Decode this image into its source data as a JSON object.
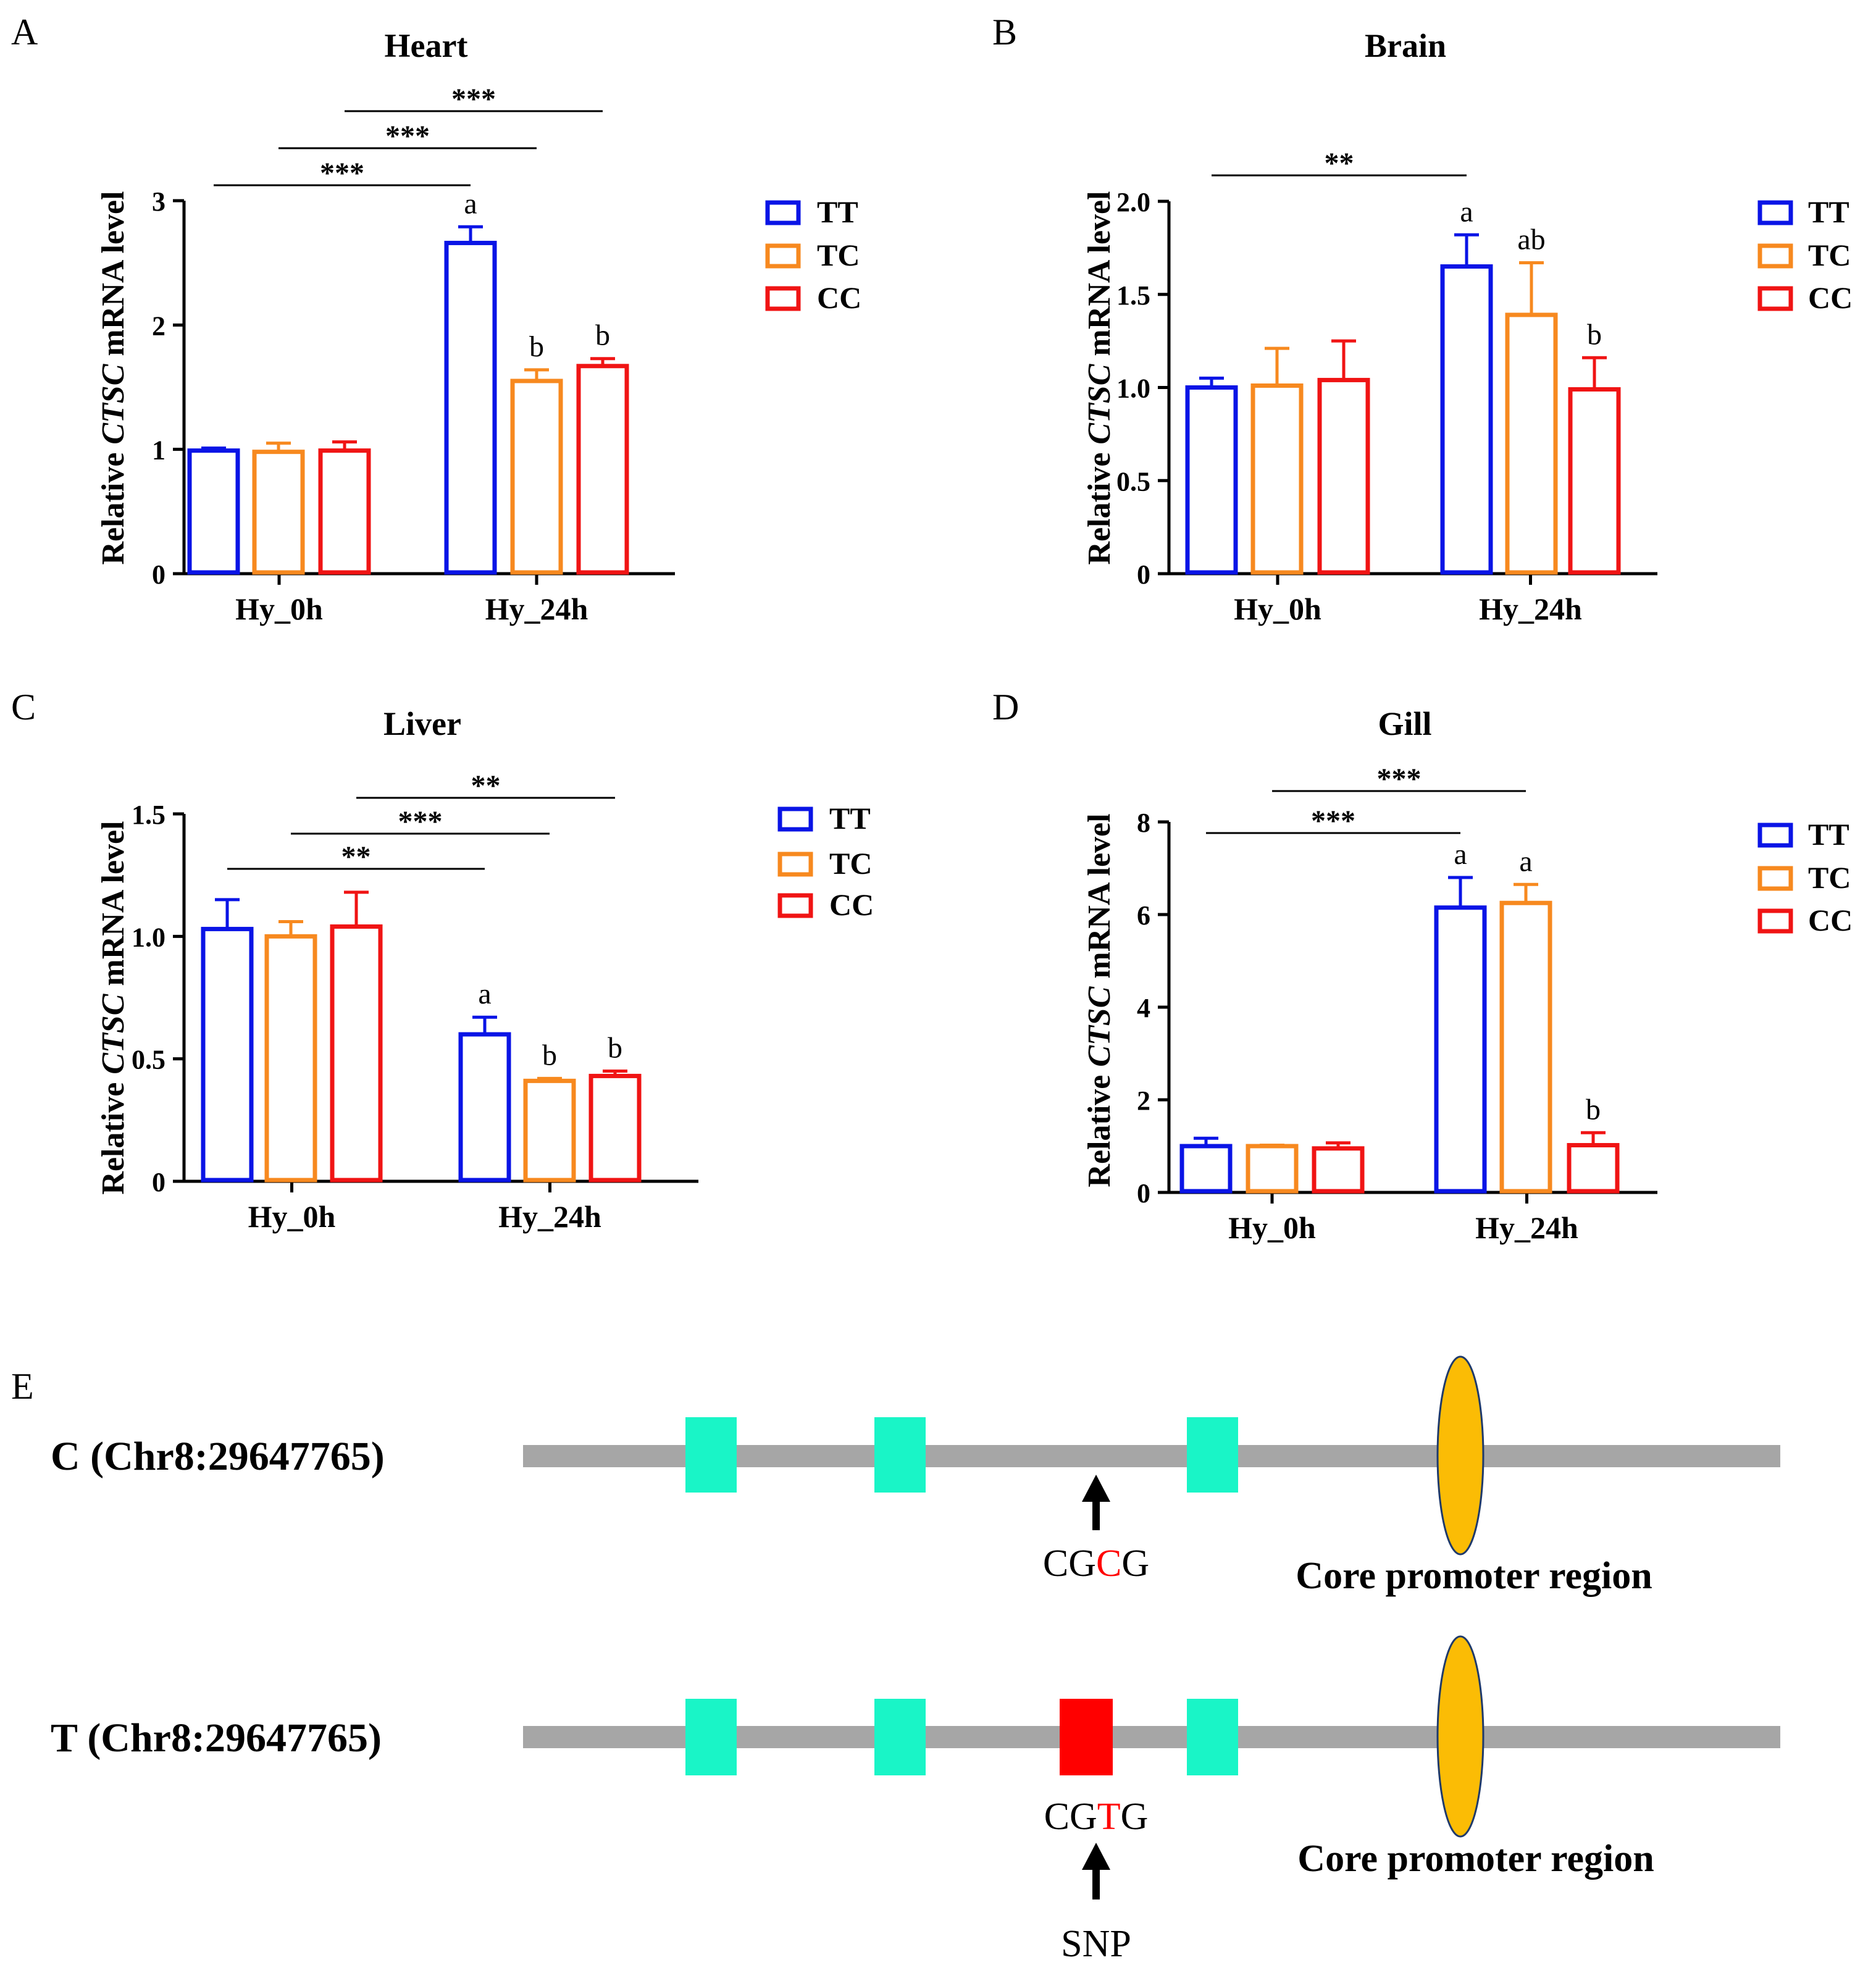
{
  "colors": {
    "TT": "#0a14e6",
    "TC": "#f7891f",
    "CC": "#f01414",
    "axis": "#000000",
    "track": "#a6a6a6",
    "exon": "#19f5c7",
    "snp_box": "#ff0000",
    "promoter": "#fbbc05",
    "promoter_edge": "#1f3a6b"
  },
  "y_axis_label": {
    "prefix": "Relative ",
    "gene": "CTSC",
    "suffix": " mRNA  level"
  },
  "chart_data": [
    {
      "panel": "A",
      "type": "bar",
      "title": "Heart",
      "categories": [
        "Hy_0h",
        "Hy_24h"
      ],
      "ylim": [
        0,
        3
      ],
      "ticks": [
        0,
        1,
        2,
        3
      ],
      "tick_labels": [
        "0",
        "1",
        "2",
        "3"
      ],
      "series": [
        {
          "name": "TT",
          "values": [
            0.99,
            2.66
          ],
          "errors": [
            0.02,
            0.13
          ],
          "letters": [
            "",
            "a"
          ]
        },
        {
          "name": "TC",
          "values": [
            0.98,
            1.55
          ],
          "errors": [
            0.07,
            0.09
          ],
          "letters": [
            "",
            "b"
          ]
        },
        {
          "name": "CC",
          "values": [
            0.99,
            1.67
          ],
          "errors": [
            0.07,
            0.06
          ],
          "letters": [
            "",
            "b"
          ]
        }
      ],
      "comparisons": [
        {
          "from": [
            "Hy_0h",
            "TT"
          ],
          "to": [
            "Hy_24h",
            "TT"
          ],
          "label": "***"
        },
        {
          "from": [
            "Hy_0h",
            "TC"
          ],
          "to": [
            "Hy_24h",
            "TC"
          ],
          "label": "***"
        },
        {
          "from": [
            "Hy_0h",
            "CC"
          ],
          "to": [
            "Hy_24h",
            "CC"
          ],
          "label": "***"
        }
      ],
      "legend": [
        "TT",
        "TC",
        "CC"
      ]
    },
    {
      "panel": "B",
      "type": "bar",
      "title": "Brain",
      "categories": [
        "Hy_0h",
        "Hy_24h"
      ],
      "ylim": [
        0,
        2
      ],
      "ticks": [
        0,
        0.5,
        1,
        1.5,
        2
      ],
      "tick_labels": [
        "0",
        "0.5",
        "1.0",
        "1.5",
        "2.0"
      ],
      "series": [
        {
          "name": "TT",
          "values": [
            1.0,
            1.65
          ],
          "errors": [
            0.05,
            0.17
          ],
          "letters": [
            "",
            "a"
          ]
        },
        {
          "name": "TC",
          "values": [
            1.01,
            1.39
          ],
          "errors": [
            0.2,
            0.28
          ],
          "letters": [
            "",
            "ab"
          ]
        },
        {
          "name": "CC",
          "values": [
            1.04,
            0.99
          ],
          "errors": [
            0.21,
            0.17
          ],
          "letters": [
            "",
            "b"
          ]
        }
      ],
      "comparisons": [
        {
          "from": [
            "Hy_0h",
            "TT"
          ],
          "to": [
            "Hy_24h",
            "TT"
          ],
          "label": "**"
        }
      ],
      "legend": [
        "TT",
        "TC",
        "CC"
      ]
    },
    {
      "panel": "C",
      "type": "bar",
      "title": "Liver",
      "categories": [
        "Hy_0h",
        "Hy_24h"
      ],
      "ylim": [
        0,
        1.5
      ],
      "ticks": [
        0,
        0.5,
        1,
        1.5
      ],
      "tick_labels": [
        "0",
        "0.5",
        "1.0",
        "1.5"
      ],
      "series": [
        {
          "name": "TT",
          "values": [
            1.03,
            0.6
          ],
          "errors": [
            0.12,
            0.07
          ],
          "letters": [
            "",
            "a"
          ]
        },
        {
          "name": "TC",
          "values": [
            1.0,
            0.41
          ],
          "errors": [
            0.06,
            0.01
          ],
          "letters": [
            "",
            "b"
          ]
        },
        {
          "name": "CC",
          "values": [
            1.04,
            0.43
          ],
          "errors": [
            0.14,
            0.02
          ],
          "letters": [
            "",
            "b"
          ]
        }
      ],
      "comparisons": [
        {
          "from": [
            "Hy_0h",
            "TT"
          ],
          "to": [
            "Hy_24h",
            "TT"
          ],
          "label": "**"
        },
        {
          "from": [
            "Hy_0h",
            "TC"
          ],
          "to": [
            "Hy_24h",
            "TC"
          ],
          "label": "***"
        },
        {
          "from": [
            "Hy_0h",
            "CC"
          ],
          "to": [
            "Hy_24h",
            "CC"
          ],
          "label": "**"
        }
      ],
      "legend": [
        "TT",
        "TC",
        "CC"
      ]
    },
    {
      "panel": "D",
      "type": "bar",
      "title": "Gill",
      "categories": [
        "Hy_0h",
        "Hy_24h"
      ],
      "ylim": [
        0,
        8
      ],
      "ticks": [
        0,
        2,
        4,
        6,
        8
      ],
      "tick_labels": [
        "0",
        "2",
        "4",
        "6",
        "8"
      ],
      "series": [
        {
          "name": "TT",
          "values": [
            1.0,
            6.15
          ],
          "errors": [
            0.17,
            0.65
          ],
          "letters": [
            "",
            "a"
          ]
        },
        {
          "name": "TC",
          "values": [
            1.0,
            6.25
          ],
          "errors": [
            0.02,
            0.4
          ],
          "letters": [
            "",
            "a"
          ]
        },
        {
          "name": "CC",
          "values": [
            0.95,
            1.02
          ],
          "errors": [
            0.12,
            0.27
          ],
          "letters": [
            "",
            "b"
          ]
        }
      ],
      "comparisons": [
        {
          "from": [
            "Hy_0h",
            "TT"
          ],
          "to": [
            "Hy_24h",
            "TT"
          ],
          "label": "***"
        },
        {
          "from": [
            "Hy_0h",
            "TC"
          ],
          "to": [
            "Hy_24h",
            "TC"
          ],
          "label": "***"
        }
      ],
      "legend": [
        "TT",
        "TC",
        "CC"
      ]
    }
  ],
  "diagram": {
    "panel": "E",
    "rows": [
      {
        "label": "C (Chr8:29647765)",
        "seq_prefix": "CG",
        "seq_base": "C",
        "seq_suffix": "G",
        "promoter_label": "Core promoter region"
      },
      {
        "label": "T (Chr8:29647765)",
        "seq_prefix": "CG",
        "seq_base": "T",
        "seq_suffix": "G",
        "promoter_label": "Core promoter region",
        "snp_label": "SNP"
      }
    ]
  }
}
